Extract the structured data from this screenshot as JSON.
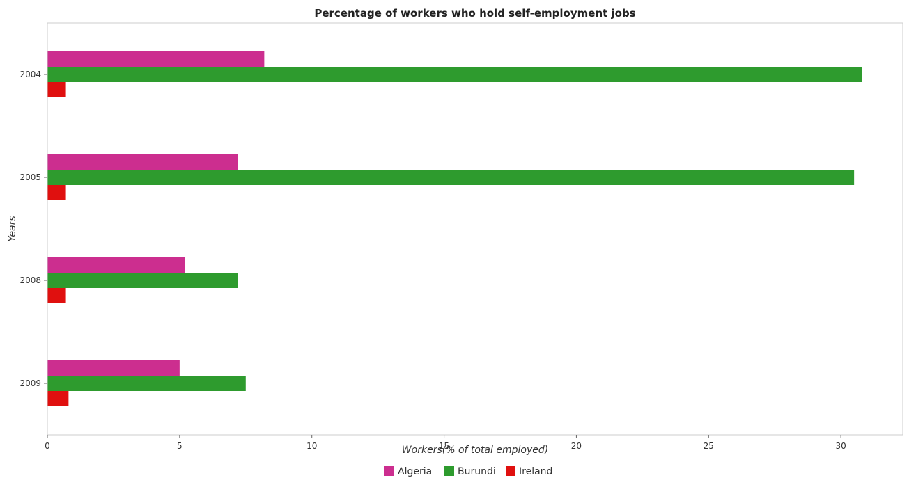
{
  "chart_data": {
    "type": "bar",
    "orientation": "horizontal",
    "title": "Percentage of workers who hold self-employment jobs",
    "xlabel": "Workers(% of total employed)",
    "ylabel": "Years",
    "categories": [
      "2004",
      "2005",
      "2008",
      "2009"
    ],
    "series": [
      {
        "name": "Algeria",
        "color": "#cc2e8f",
        "values": [
          8.2,
          7.2,
          5.2,
          5.0
        ]
      },
      {
        "name": "Burundi",
        "color": "#2e9b2e",
        "values": [
          30.8,
          30.5,
          7.2,
          7.5
        ]
      },
      {
        "name": "Ireland",
        "color": "#e0100f",
        "values": [
          0.7,
          0.7,
          0.7,
          0.8
        ]
      }
    ],
    "xlim": [
      0,
      32.34
    ],
    "xticks": [
      "0",
      "5",
      "10",
      "15",
      "20",
      "25",
      "30"
    ],
    "grid": false,
    "legend_position": "bottom"
  }
}
